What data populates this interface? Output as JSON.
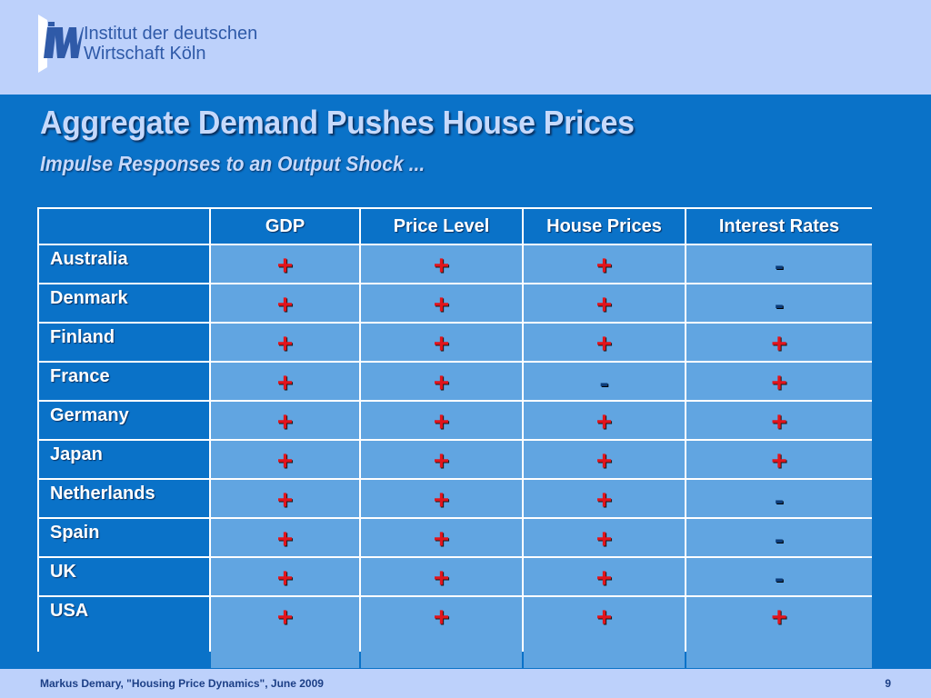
{
  "header": {
    "institute_line1": "Institut der deutschen",
    "institute_line2": "Wirtschaft Köln"
  },
  "slide": {
    "title": "Aggregate Demand Pushes House Prices",
    "subtitle": "Impulse Responses to an Output Shock ..."
  },
  "table": {
    "columns": [
      "",
      "GDP",
      "Price Level",
      "House Prices",
      "Interest Rates"
    ],
    "rows": [
      {
        "country": "Australia",
        "values": [
          "+",
          "+",
          "+",
          "-"
        ]
      },
      {
        "country": "Denmark",
        "values": [
          "+",
          "+",
          "+",
          "-"
        ]
      },
      {
        "country": "Finland",
        "values": [
          "+",
          "+",
          "+",
          "+"
        ]
      },
      {
        "country": "France",
        "values": [
          "+",
          "+",
          "-",
          "+"
        ]
      },
      {
        "country": "Germany",
        "values": [
          "+",
          "+",
          "+",
          "+"
        ]
      },
      {
        "country": "Japan",
        "values": [
          "+",
          "+",
          "+",
          "+"
        ]
      },
      {
        "country": "Netherlands",
        "values": [
          "+",
          "+",
          "+",
          "-"
        ]
      },
      {
        "country": "Spain",
        "values": [
          "+",
          "+",
          "+",
          "-"
        ]
      },
      {
        "country": "UK",
        "values": [
          "+",
          "+",
          "+",
          "-"
        ]
      },
      {
        "country": "USA",
        "values": [
          "+",
          "+",
          "+",
          "+"
        ]
      }
    ]
  },
  "footer": {
    "citation": "Markus Demary, \"Housing Price Dynamics\", June 2009",
    "page_number": "9"
  },
  "colors": {
    "background": "#0a72c8",
    "header_band": "#bdd1fb",
    "cell_fill": "#61a5e1",
    "plus_sign": "#e2141c",
    "minus_sign": "#0d3d7a"
  }
}
